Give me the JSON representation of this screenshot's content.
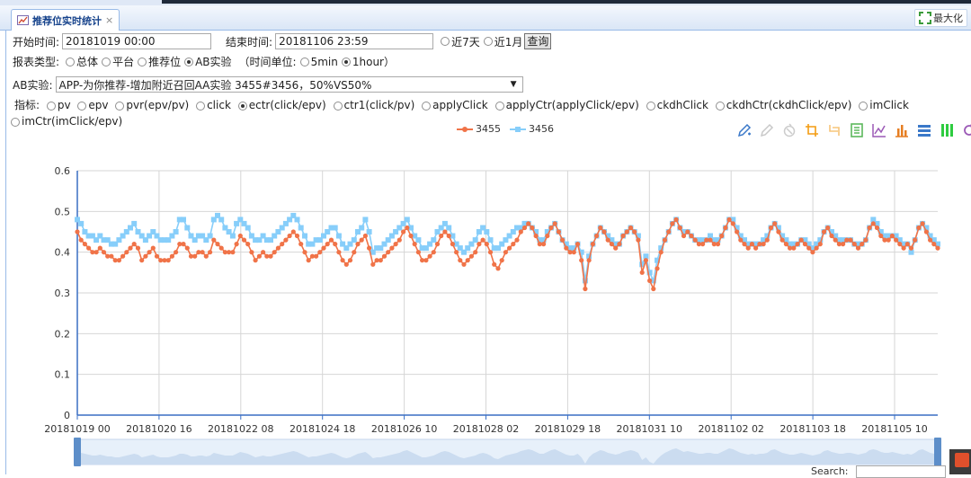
{
  "tab": {
    "title": "推荐位实时统计",
    "close": "×"
  },
  "maximize_label": "最大化",
  "filters": {
    "start_label": "开始时间:",
    "start_value": "20181019 00:00",
    "end_label": "结束时间:",
    "end_value": "20181106 23:59",
    "last7": "近7天",
    "last1m": "近1月",
    "query": "查询"
  },
  "report_type": {
    "label": "报表类型:",
    "options": [
      "总体",
      "平台",
      "推荐位",
      "AB实验"
    ],
    "selected": "AB实验",
    "time_unit_open": "（时间单位:",
    "time_units": [
      "5min",
      "1hour"
    ],
    "time_unit_selected": "1hour",
    "time_unit_close": "）"
  },
  "ab": {
    "label": "AB实验:",
    "selected": "APP-为你推荐-增加附近召回AA实验 3455#3456，50%VS50%"
  },
  "metrics": {
    "label": "指标:",
    "options": [
      "pv",
      "epv",
      "pvr(epv/pv)",
      "click",
      "ectr(click/epv)",
      "ctr1(click/pv)",
      "applyClick",
      "applyCtr(applyClick/epv)",
      "ckdhClick",
      "ckdhCtr(ckdhClick/epv)",
      "imClick",
      "imCtr(imClick/epv)"
    ],
    "selected": "ectr(click/epv)"
  },
  "search_label": "Search:",
  "toolbox": [
    "pencil-icon",
    "eraser-icon",
    "clear-icon",
    "zoom-icon",
    "zoom-reset-icon",
    "data-view-icon",
    "line-chart-icon",
    "bar-chart-icon",
    "stack-icon",
    "tiled-icon",
    "refresh-icon"
  ],
  "colors": {
    "s3455": "#f07348",
    "s3456": "#87cefa",
    "axis": "#3a6fc4",
    "tab_text": "#15428b"
  },
  "chart_data": {
    "type": "line",
    "series": [
      {
        "name": "3455",
        "values": [
          0.45,
          0.43,
          0.42,
          0.41,
          0.4,
          0.4,
          0.41,
          0.4,
          0.39,
          0.39,
          0.38,
          0.38,
          0.39,
          0.4,
          0.41,
          0.42,
          0.41,
          0.38,
          0.39,
          0.4,
          0.41,
          0.39,
          0.38,
          0.38,
          0.38,
          0.39,
          0.4,
          0.42,
          0.42,
          0.41,
          0.39,
          0.39,
          0.4,
          0.4,
          0.39,
          0.4,
          0.43,
          0.42,
          0.41,
          0.4,
          0.4,
          0.4,
          0.42,
          0.44,
          0.43,
          0.42,
          0.4,
          0.38,
          0.39,
          0.4,
          0.39,
          0.39,
          0.4,
          0.41,
          0.42,
          0.43,
          0.44,
          0.45,
          0.44,
          0.42,
          0.4,
          0.38,
          0.39,
          0.39,
          0.4,
          0.41,
          0.42,
          0.43,
          0.42,
          0.4,
          0.38,
          0.37,
          0.38,
          0.4,
          0.42,
          0.43,
          0.44,
          0.41,
          0.37,
          0.38,
          0.38,
          0.39,
          0.4,
          0.41,
          0.42,
          0.43,
          0.45,
          0.46,
          0.44,
          0.42,
          0.4,
          0.38,
          0.38,
          0.39,
          0.4,
          0.42,
          0.44,
          0.45,
          0.44,
          0.42,
          0.4,
          0.38,
          0.37,
          0.38,
          0.39,
          0.4,
          0.42,
          0.43,
          0.42,
          0.4,
          0.37,
          0.36,
          0.38,
          0.4,
          0.41,
          0.42,
          0.43,
          0.45,
          0.46,
          0.47,
          0.46,
          0.44,
          0.42,
          0.42,
          0.44,
          0.46,
          0.47,
          0.45,
          0.43,
          0.41,
          0.4,
          0.4,
          0.42,
          0.38,
          0.31,
          0.38,
          0.42,
          0.44,
          0.46,
          0.45,
          0.43,
          0.42,
          0.41,
          0.42,
          0.44,
          0.45,
          0.46,
          0.45,
          0.43,
          0.35,
          0.38,
          0.33,
          0.31,
          0.36,
          0.4,
          0.43,
          0.45,
          0.47,
          0.48,
          0.46,
          0.44,
          0.45,
          0.44,
          0.43,
          0.42,
          0.42,
          0.43,
          0.43,
          0.42,
          0.42,
          0.44,
          0.46,
          0.48,
          0.47,
          0.45,
          0.43,
          0.42,
          0.41,
          0.42,
          0.41,
          0.42,
          0.42,
          0.43,
          0.46,
          0.47,
          0.45,
          0.43,
          0.42,
          0.41,
          0.41,
          0.42,
          0.43,
          0.42,
          0.41,
          0.4,
          0.41,
          0.42,
          0.45,
          0.46,
          0.44,
          0.43,
          0.42,
          0.42,
          0.43,
          0.43,
          0.42,
          0.41,
          0.42,
          0.43,
          0.46,
          0.47,
          0.46,
          0.44,
          0.43,
          0.43,
          0.44,
          0.43,
          0.42,
          0.41,
          0.42,
          0.41,
          0.43,
          0.46,
          0.47,
          0.45,
          0.43,
          0.42,
          0.41
        ]
      },
      {
        "name": "3456",
        "values": [
          0.48,
          0.47,
          0.45,
          0.44,
          0.44,
          0.43,
          0.44,
          0.43,
          0.43,
          0.42,
          0.42,
          0.43,
          0.44,
          0.45,
          0.46,
          0.47,
          0.45,
          0.44,
          0.43,
          0.44,
          0.45,
          0.44,
          0.43,
          0.43,
          0.43,
          0.44,
          0.45,
          0.48,
          0.48,
          0.46,
          0.44,
          0.43,
          0.44,
          0.44,
          0.43,
          0.44,
          0.48,
          0.49,
          0.48,
          0.46,
          0.45,
          0.44,
          0.47,
          0.48,
          0.47,
          0.46,
          0.44,
          0.43,
          0.43,
          0.44,
          0.43,
          0.43,
          0.44,
          0.45,
          0.46,
          0.47,
          0.48,
          0.49,
          0.48,
          0.46,
          0.44,
          0.42,
          0.42,
          0.43,
          0.43,
          0.44,
          0.45,
          0.46,
          0.46,
          0.44,
          0.42,
          0.41,
          0.42,
          0.43,
          0.45,
          0.46,
          0.48,
          0.45,
          0.4,
          0.41,
          0.41,
          0.42,
          0.43,
          0.44,
          0.45,
          0.46,
          0.47,
          0.48,
          0.46,
          0.44,
          0.43,
          0.41,
          0.41,
          0.42,
          0.43,
          0.45,
          0.46,
          0.47,
          0.46,
          0.44,
          0.42,
          0.41,
          0.4,
          0.41,
          0.42,
          0.43,
          0.45,
          0.46,
          0.45,
          0.43,
          0.41,
          0.41,
          0.42,
          0.43,
          0.44,
          0.45,
          0.46,
          0.46,
          0.47,
          0.47,
          0.46,
          0.45,
          0.43,
          0.43,
          0.45,
          0.46,
          0.47,
          0.45,
          0.43,
          0.42,
          0.41,
          0.41,
          0.42,
          0.4,
          0.33,
          0.39,
          0.42,
          0.44,
          0.46,
          0.45,
          0.44,
          0.43,
          0.42,
          0.42,
          0.44,
          0.45,
          0.46,
          0.45,
          0.44,
          0.37,
          0.39,
          0.35,
          0.33,
          0.38,
          0.41,
          0.43,
          0.45,
          0.47,
          0.48,
          0.46,
          0.45,
          0.45,
          0.44,
          0.43,
          0.43,
          0.43,
          0.43,
          0.44,
          0.43,
          0.43,
          0.44,
          0.46,
          0.48,
          0.48,
          0.46,
          0.44,
          0.43,
          0.42,
          0.42,
          0.42,
          0.42,
          0.43,
          0.44,
          0.46,
          0.47,
          0.46,
          0.44,
          0.43,
          0.42,
          0.42,
          0.42,
          0.43,
          0.43,
          0.42,
          0.41,
          0.42,
          0.43,
          0.45,
          0.46,
          0.45,
          0.44,
          0.43,
          0.43,
          0.43,
          0.43,
          0.42,
          0.42,
          0.42,
          0.43,
          0.46,
          0.48,
          0.47,
          0.45,
          0.44,
          0.44,
          0.44,
          0.44,
          0.43,
          0.42,
          0.42,
          0.4,
          0.43,
          0.46,
          0.47,
          0.46,
          0.44,
          0.43,
          0.42
        ]
      }
    ],
    "x_tick_labels": [
      "20181019 00",
      "20181020 16",
      "20181022 08",
      "20181024 18",
      "20181026 10",
      "20181028 02",
      "20181029 18",
      "20181031 10",
      "20181102 02",
      "20181103 18",
      "20181105 10"
    ],
    "y_ticks": [
      0,
      0.1,
      0.2,
      0.3,
      0.4,
      0.5,
      0.6
    ],
    "ylim": [
      0,
      0.6
    ],
    "grid": true,
    "legend_position": "top-center",
    "datazoom": true
  }
}
